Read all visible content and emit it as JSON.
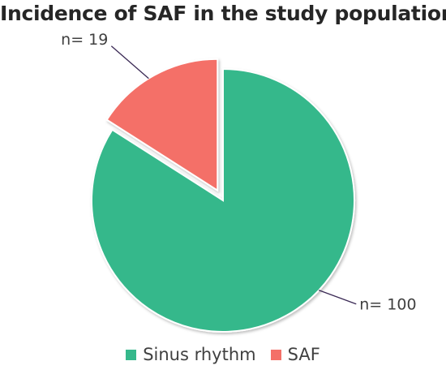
{
  "chart_data": {
    "type": "pie",
    "title": "Incidence of SAF in the study population",
    "categories": [
      "Sinus rhythm",
      "SAF"
    ],
    "values": [
      100,
      19
    ],
    "data_labels": [
      "n= 100",
      "n= 19"
    ],
    "colors": [
      "#35b88b",
      "#f47068"
    ],
    "exploded": [
      false,
      true
    ],
    "legend_position": "bottom"
  }
}
